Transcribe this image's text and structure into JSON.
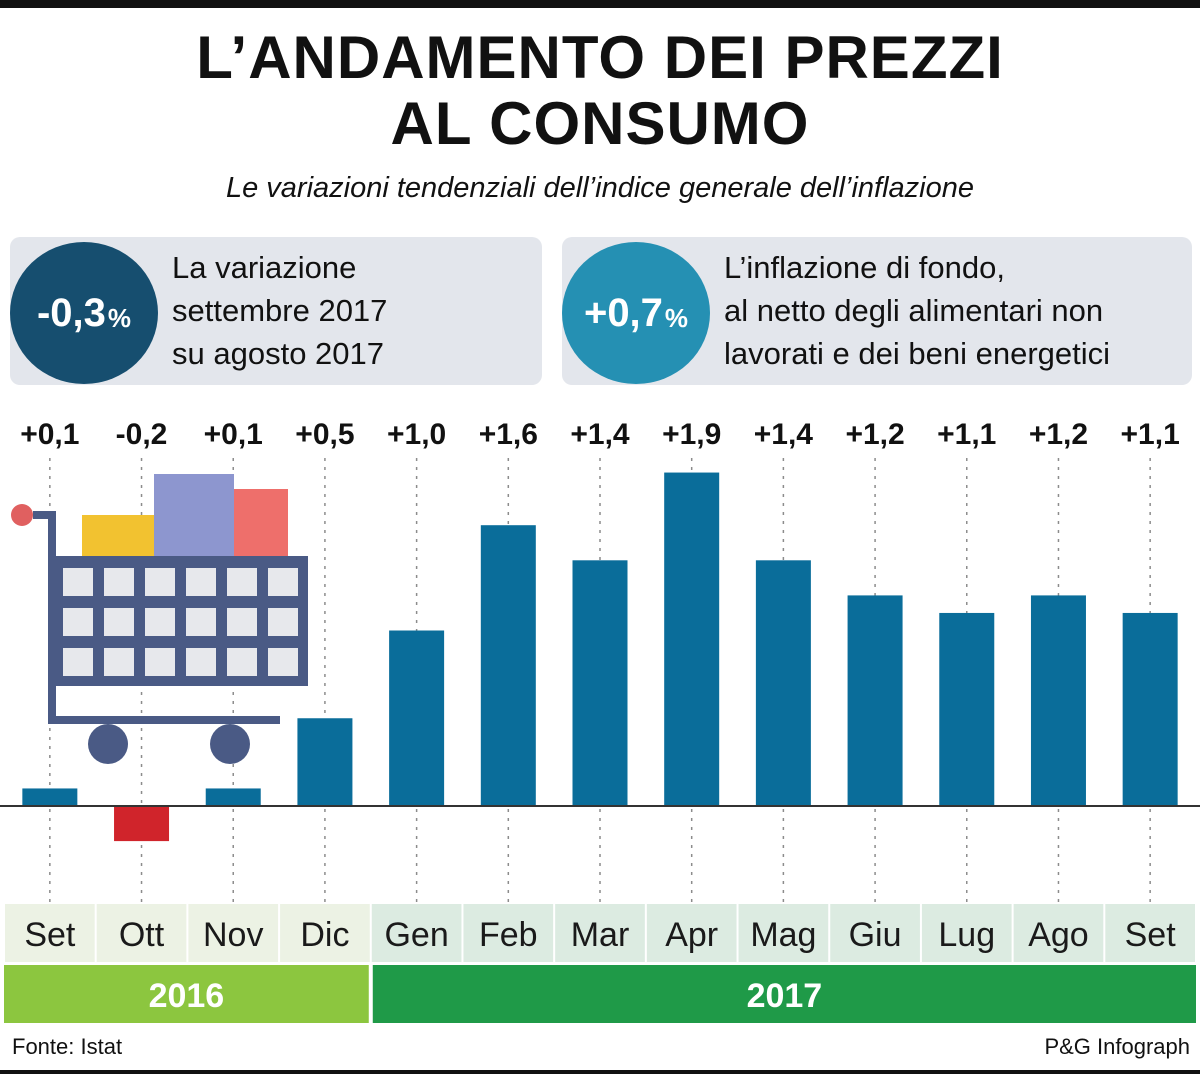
{
  "title_line1": "L’ANDAMENTO DEI PREZZI",
  "title_line2": "AL CONSUMO",
  "subtitle": "Le variazioni tendenziali dell’indice generale dell’inflazione",
  "panels": [
    {
      "value": "-0,3",
      "unit": "%",
      "color": "#164e6f",
      "lines": [
        "La variazione",
        "settembre 2017",
        "su agosto 2017"
      ]
    },
    {
      "value": "+0,7",
      "unit": "%",
      "color": "#2590b3",
      "lines": [
        "L’inflazione di fondo,",
        "al netto degli alimentari non",
        "lavorati e dei beni energetici"
      ]
    }
  ],
  "chart_data": {
    "type": "bar",
    "categories": [
      "Set",
      "Ott",
      "Nov",
      "Dic",
      "Gen",
      "Feb",
      "Mar",
      "Apr",
      "Mag",
      "Giu",
      "Lug",
      "Ago",
      "Set"
    ],
    "values": [
      0.1,
      -0.2,
      0.1,
      0.5,
      1.0,
      1.6,
      1.4,
      1.9,
      1.4,
      1.2,
      1.1,
      1.2,
      1.1
    ],
    "value_labels": [
      "+0,1",
      "-0,2",
      "+0,1",
      "+0,5",
      "+1,0",
      "+1,6",
      "+1,4",
      "+1,9",
      "+1,4",
      "+1,2",
      "+1,1",
      "+1,2",
      "+1,1"
    ],
    "years": [
      {
        "label": "2016",
        "months": 4,
        "color": "#8cc63f"
      },
      {
        "label": "2017",
        "months": 9,
        "color": "#1f9a48"
      }
    ],
    "positive_color": "#0a6d9a",
    "negative_color": "#d0242b",
    "grid": "dotted vertical lines per month",
    "legend": "none"
  },
  "source": "Fonte: Istat",
  "credit": "P&G Infograph"
}
